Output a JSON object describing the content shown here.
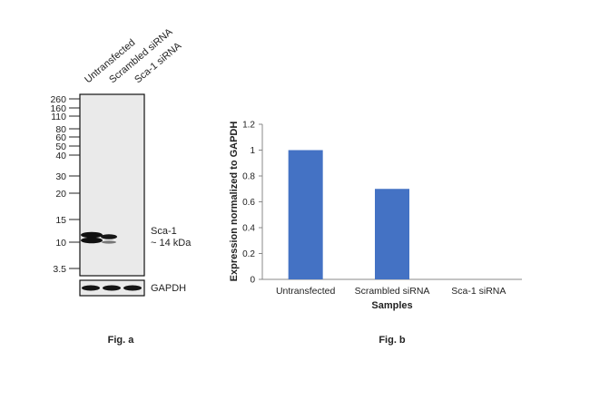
{
  "blot": {
    "lane_labels": [
      "Untransfected",
      "Scrambled siRNA",
      "Sca-1 siRNA"
    ],
    "mw_markers": [
      "260",
      "160",
      "110",
      "80",
      "60",
      "50",
      "40",
      "30",
      "20",
      "15",
      "10",
      "3.5"
    ],
    "target_label_line1": "Sca-1",
    "target_label_line2": "~ 14 kDa",
    "loading_control_label": "GAPDH",
    "figure_label": "Fig. a"
  },
  "chart_data": {
    "type": "bar",
    "categories": [
      "Untransfected",
      "Scrambled siRNA",
      "Sca-1 siRNA"
    ],
    "values": [
      1.0,
      0.7,
      0.0
    ],
    "ylabel": "Expression normalized to GAPDH",
    "xlabel": "Samples",
    "ylim": [
      0,
      1.2
    ],
    "yticks": [
      "0",
      "0.2",
      "0.4",
      "0.6",
      "0.8",
      "1",
      "1.2"
    ],
    "grid": false,
    "bar_color": "#4472C4",
    "figure_label": "Fig. b"
  }
}
